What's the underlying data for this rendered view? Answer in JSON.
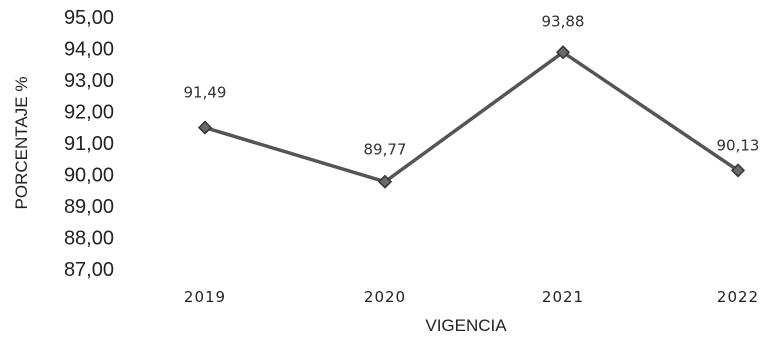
{
  "chart_data": {
    "type": "line",
    "categories": [
      "2019",
      "2020",
      "2021",
      "2022"
    ],
    "series": [
      {
        "values": [
          91.49,
          89.77,
          93.88,
          90.13
        ]
      }
    ],
    "data_labels": [
      "91,49",
      "89,77",
      "93,88",
      "90,13"
    ],
    "yticks": [
      "95,00",
      "94,00",
      "93,00",
      "92,00",
      "91,00",
      "90,00",
      "89,00",
      "88,00",
      "87,00"
    ],
    "ylim": [
      87,
      95
    ],
    "xlabel": "VIGENCIA",
    "ylabel": "PORCENTAJE %",
    "grid": false,
    "legend": "none",
    "line_color": "#555555",
    "marker": "diamond"
  }
}
